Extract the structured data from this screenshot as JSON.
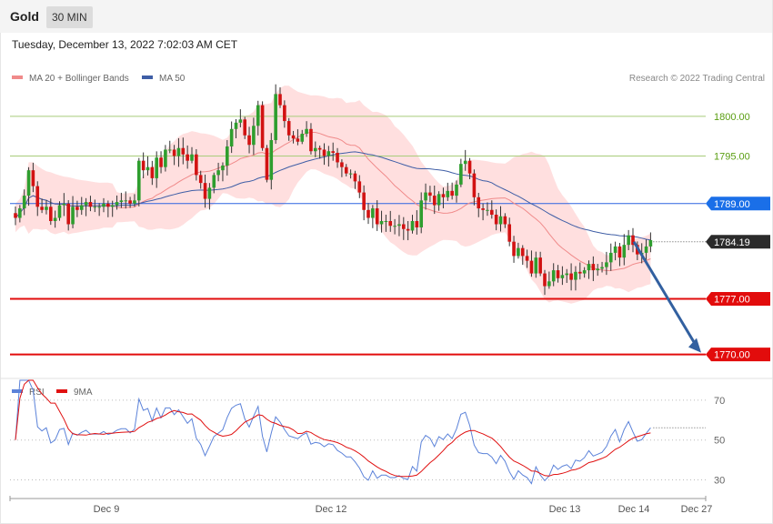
{
  "header": {
    "instrument": "Gold",
    "timeframe": "30 MIN"
  },
  "datetime": "Tuesday, December 13, 2022 7:02:03 AM CET",
  "price_legend": {
    "ma20": "MA 20 + Bollinger Bands",
    "ma50": "MA 50"
  },
  "credit": "Research © 2022 Trading Central",
  "rsi_legend": {
    "rsi": "RSI",
    "ma9": "9MA"
  },
  "colors": {
    "up": "#2e9e2e",
    "down": "#d21212",
    "bollinger": "#ffd9d9",
    "ma20": "#f08a8a",
    "ma50": "#3f5ea6",
    "pivot": "#2b63e0",
    "support": "#e20c0c",
    "resistance": "#a8cc7a",
    "arrow": "#3260a0",
    "rsi": "#5b82d9",
    "rsi_ma": "#e01010"
  },
  "chart_data": [
    {
      "type": "candlestick",
      "title": "Gold 30 MIN",
      "ylim": [
        1767.2,
        1806.4
      ],
      "x_ticks": [
        "Dec 9",
        "Dec 12",
        "Dec 13",
        "Dec 14",
        "Dec 27"
      ],
      "levels": [
        {
          "label": "1800.00",
          "value": 1800.0,
          "kind": "resistance"
        },
        {
          "label": "1795.00",
          "value": 1795.0,
          "kind": "resistance"
        },
        {
          "label": "1789.00",
          "value": 1789.0,
          "kind": "pivot"
        },
        {
          "label": "1784.19",
          "value": 1784.19,
          "kind": "last"
        },
        {
          "label": "1777.00",
          "value": 1777.0,
          "kind": "support"
        },
        {
          "label": "1770.00",
          "value": 1770.0,
          "kind": "support"
        }
      ],
      "forecast_arrow": {
        "from": 1784.19,
        "to": 1770.0
      },
      "closes": [
        1787.2,
        1788.4,
        1790.0,
        1793.2,
        1791.2,
        1788.6,
        1788.2,
        1788.6,
        1786.8,
        1787.2,
        1788.8,
        1789.0,
        1786.4,
        1788.6,
        1788.2,
        1788.8,
        1789.2,
        1788.6,
        1788.6,
        1788.6,
        1789.0,
        1788.6,
        1788.8,
        1789.2,
        1789.4,
        1789.4,
        1789.0,
        1789.4,
        1794.4,
        1793.2,
        1793.6,
        1792.2,
        1794.8,
        1793.6,
        1795.8,
        1795.8,
        1795.0,
        1796.0,
        1795.2,
        1794.4,
        1795.2,
        1792.6,
        1791.6,
        1789.6,
        1791.0,
        1792.6,
        1793.2,
        1793.8,
        1796.2,
        1798.4,
        1799.2,
        1799.6,
        1797.6,
        1796.4,
        1798.8,
        1801.4,
        1796.0,
        1792.0,
        1797.0,
        1802.8,
        1801.4,
        1799.4,
        1797.6,
        1797.2,
        1796.8,
        1797.8,
        1798.4,
        1795.6,
        1796.0,
        1795.8,
        1795.0,
        1795.6,
        1795.4,
        1794.2,
        1793.6,
        1792.8,
        1792.8,
        1791.8,
        1790.4,
        1788.2,
        1787.2,
        1788.4,
        1786.4,
        1786.8,
        1786.8,
        1786.2,
        1786.2,
        1786.4,
        1785.8,
        1785.6,
        1786.8,
        1786.0,
        1789.4,
        1790.4,
        1790.0,
        1788.8,
        1790.2,
        1789.8,
        1790.6,
        1790.0,
        1791.4,
        1794.0,
        1794.4,
        1792.8,
        1789.8,
        1788.4,
        1788.2,
        1788.2,
        1787.6,
        1786.4,
        1787.4,
        1786.4,
        1784.2,
        1782.4,
        1783.4,
        1782.4,
        1781.8,
        1780.2,
        1782.2,
        1780.2,
        1778.6,
        1779.2,
        1780.6,
        1779.6,
        1780.0,
        1780.2,
        1779.4,
        1780.4,
        1780.2,
        1780.6,
        1781.4,
        1780.6,
        1780.8,
        1781.0,
        1781.6,
        1782.8,
        1783.6,
        1782.2,
        1783.8,
        1785.0,
        1783.8,
        1782.6,
        1782.8,
        1783.6,
        1784.4
      ],
      "series": [
        {
          "name": "MA 20 + Bollinger Bands"
        },
        {
          "name": "MA 50"
        }
      ]
    },
    {
      "type": "line",
      "ylim": [
        22,
        80
      ],
      "y_ticks": [
        70,
        50,
        30
      ],
      "series": [
        {
          "name": "RSI"
        },
        {
          "name": "9MA"
        }
      ]
    }
  ]
}
